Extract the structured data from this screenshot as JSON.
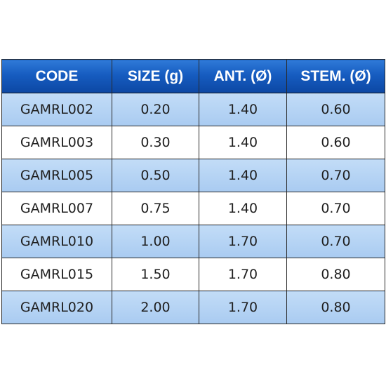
{
  "table": {
    "headers": [
      "CODE",
      "SIZE (g)",
      "ANT. (Ø)",
      "STEM. (Ø)"
    ],
    "rows": [
      [
        "GAMRL002",
        "0.20",
        "1.40",
        "0.60"
      ],
      [
        "GAMRL003",
        "0.30",
        "1.40",
        "0.60"
      ],
      [
        "GAMRL005",
        "0.50",
        "1.40",
        "0.70"
      ],
      [
        "GAMRL007",
        "0.75",
        "1.40",
        "0.70"
      ],
      [
        "GAMRL010",
        "1.00",
        "1.70",
        "0.70"
      ],
      [
        "GAMRL015",
        "1.50",
        "1.70",
        "0.80"
      ],
      [
        "GAMRL020",
        "2.00",
        "1.70",
        "0.80"
      ]
    ]
  },
  "colors": {
    "header_blue": "#165cc0",
    "row_blue": "#b3d2f3",
    "row_white": "#ffffff",
    "border": "#2a2a2a"
  }
}
